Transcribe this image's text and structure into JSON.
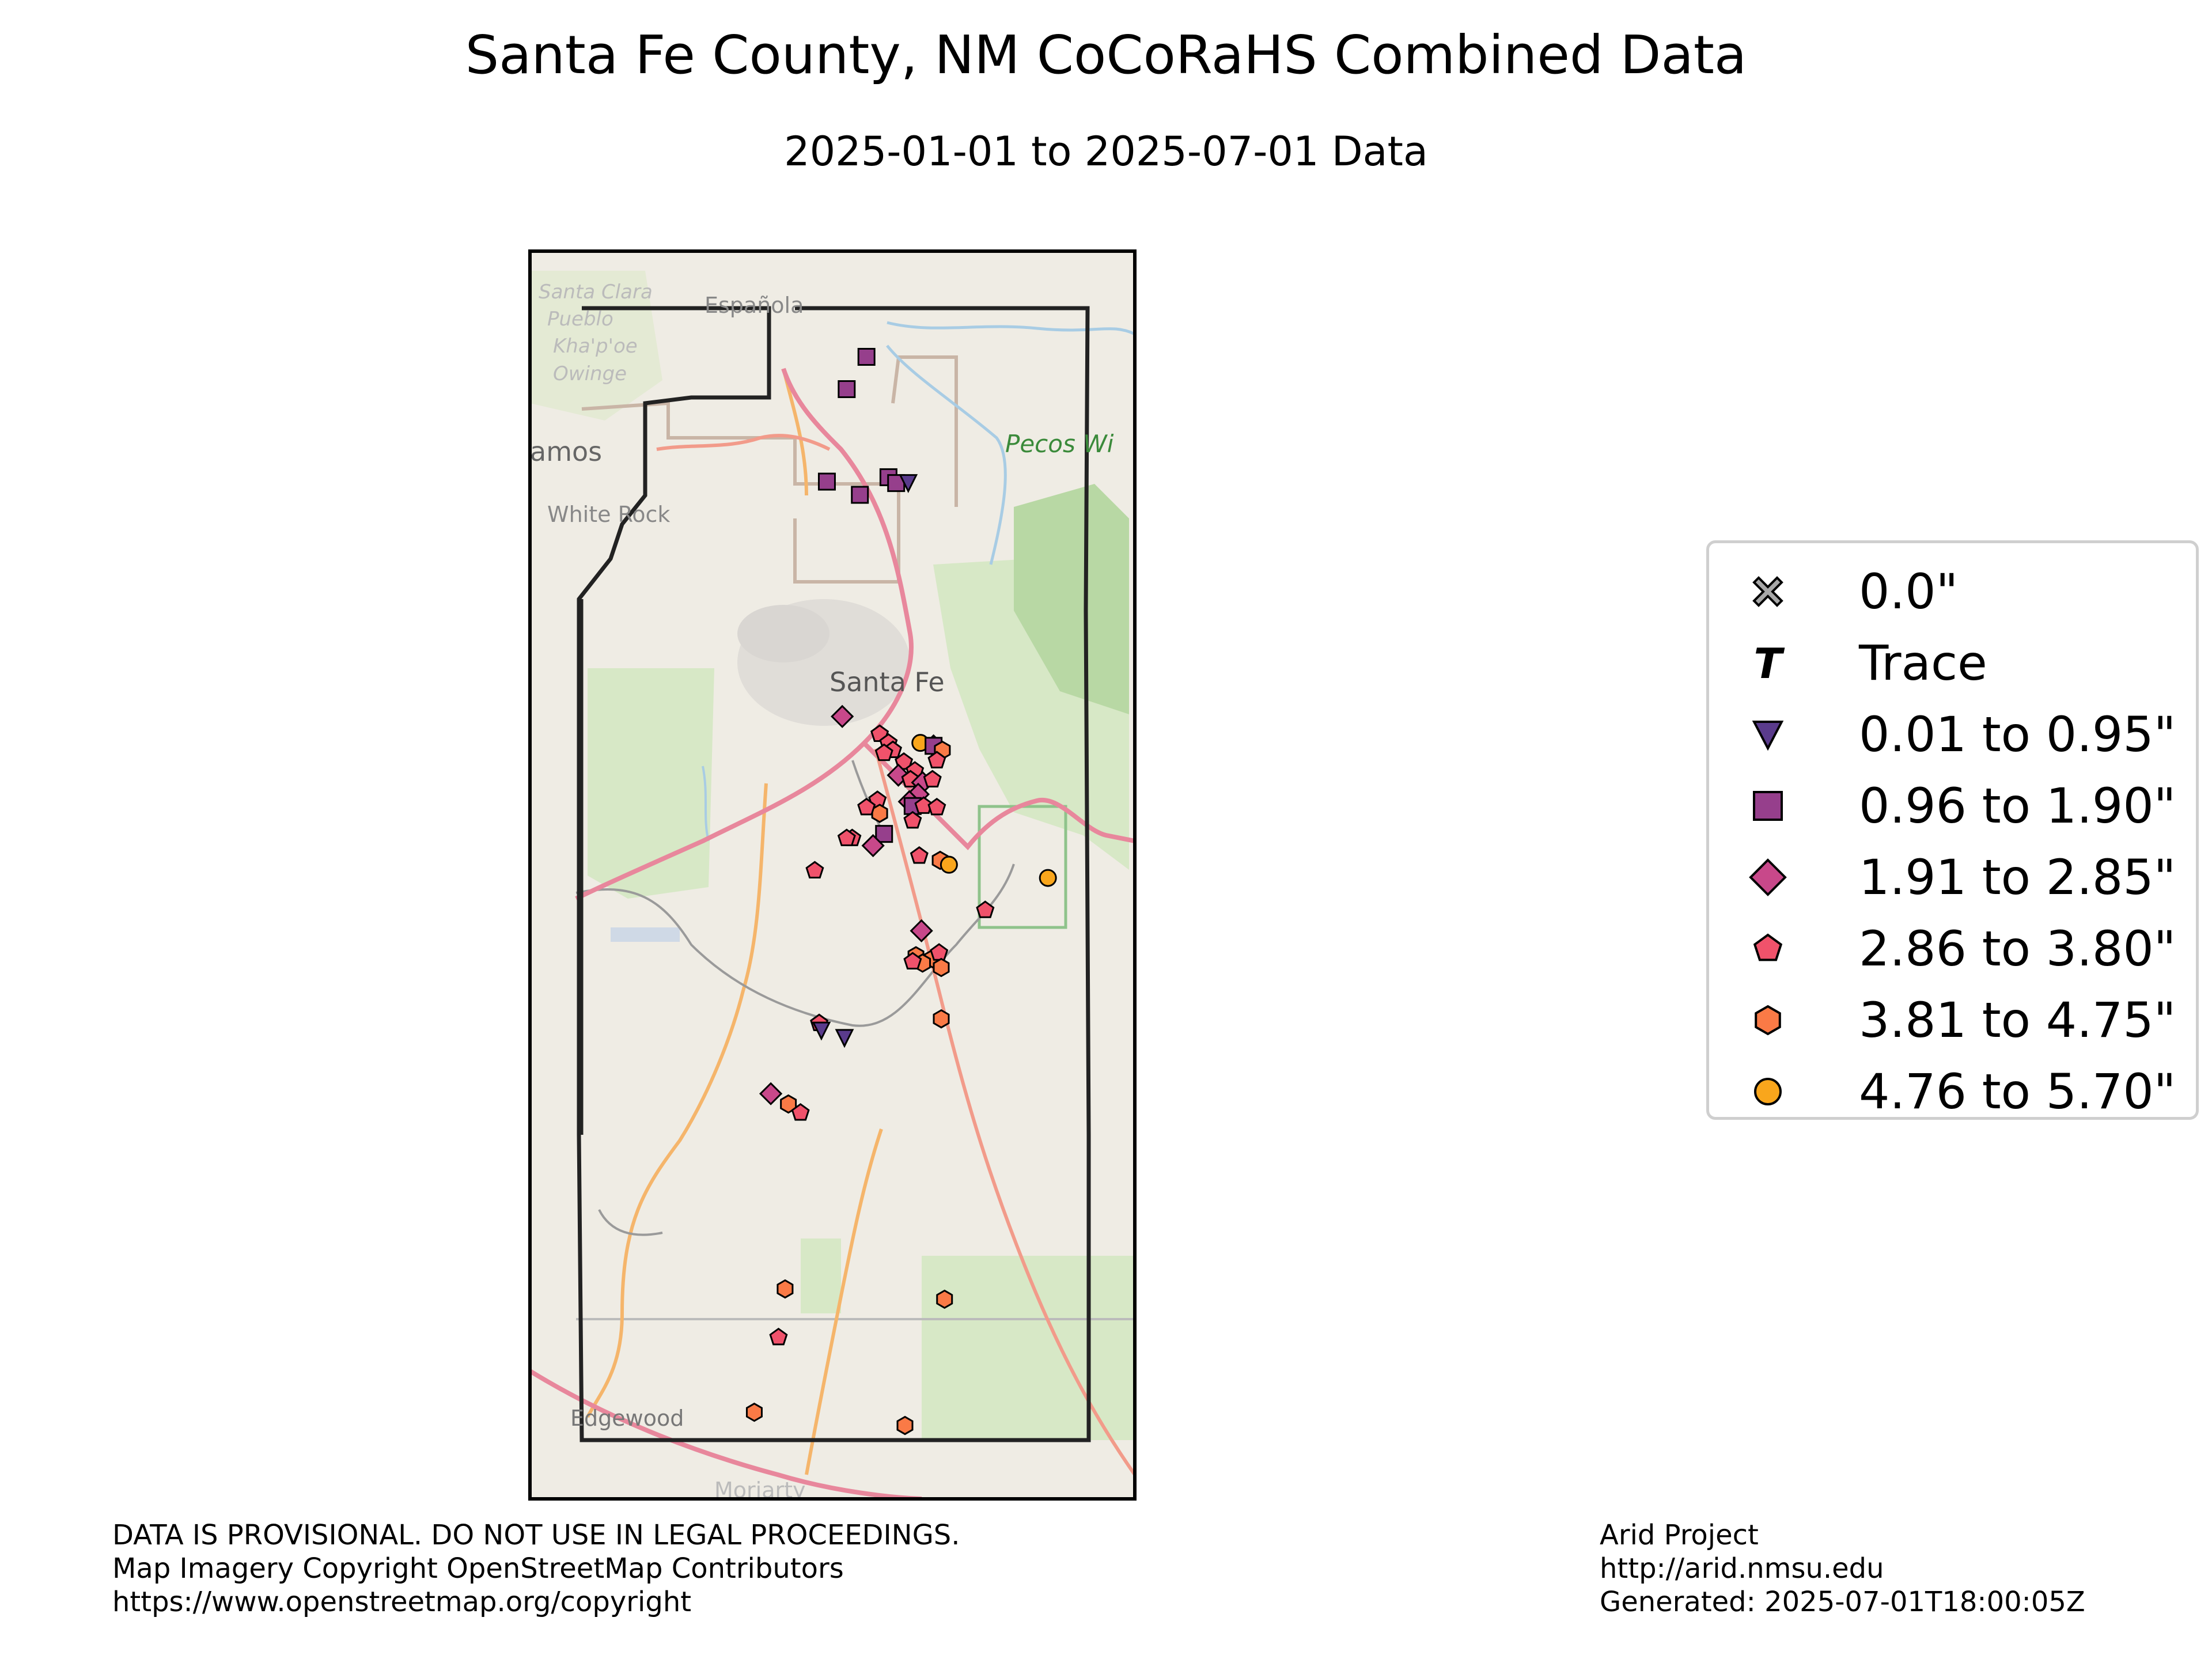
{
  "title": "Santa Fe County, NM CoCoRaHS Combined Data",
  "subtitle": "2025-01-01 to 2025-07-01 Data",
  "map": {
    "place_labels": [
      "Santa Clara",
      "Pueblo",
      "Kha'p'oe",
      "Owinge",
      "Española",
      "amos",
      "White Rock",
      "Pecos Wi",
      "Santa Fe",
      "Edgewood",
      "Moriarty"
    ],
    "colors": {
      "land": "#efece4",
      "forest": "#d7e8c6",
      "forest_dark": "#b8d8a4",
      "county_border": "#222222",
      "highway": "#e8879c",
      "secondary_road": "#f5b56b",
      "admin_boundary": "#c9b5a6"
    }
  },
  "legend": {
    "items": [
      {
        "label": "0.0\"",
        "symbol": "x-icon",
        "color": "#a8a8a8"
      },
      {
        "label": "Trace",
        "symbol": "trace-t-icon",
        "color": "#000000"
      },
      {
        "label": "0.01 to 0.95\"",
        "symbol": "triangle-down-icon",
        "color": "#5a3b8c"
      },
      {
        "label": "0.96 to 1.90\"",
        "symbol": "square-icon",
        "color": "#963f8c"
      },
      {
        "label": "1.91 to 2.85\"",
        "symbol": "diamond-icon",
        "color": "#c8488a"
      },
      {
        "label": "2.86 to 3.80\"",
        "symbol": "pentagon-icon",
        "color": "#f0526b"
      },
      {
        "label": "3.81 to 4.75\"",
        "symbol": "hexagon-icon",
        "color": "#fa7a46"
      },
      {
        "label": "4.76 to 5.70\"",
        "symbol": "circle-icon",
        "color": "#f9a61c"
      }
    ]
  },
  "stations": [
    {
      "category": 3,
      "lon": -105.944,
      "lat": 35.978
    },
    {
      "category": 3,
      "lon": -105.962,
      "lat": 35.956
    },
    {
      "category": 3,
      "lon": -105.98,
      "lat": 35.893
    },
    {
      "category": 3,
      "lon": -105.95,
      "lat": 35.884
    },
    {
      "category": 3,
      "lon": -105.924,
      "lat": 35.896
    },
    {
      "category": 3,
      "lon": -105.917,
      "lat": 35.892
    },
    {
      "category": 2,
      "lon": -105.906,
      "lat": 35.892
    },
    {
      "category": 4,
      "lon": -105.966,
      "lat": 35.733
    },
    {
      "category": 4,
      "lon": -105.883,
      "lat": 35.713
    },
    {
      "category": 5,
      "lon": -105.932,
      "lat": 35.721
    },
    {
      "category": 5,
      "lon": -105.924,
      "lat": 35.715
    },
    {
      "category": 5,
      "lon": -105.92,
      "lat": 35.71
    },
    {
      "category": 5,
      "lon": -105.928,
      "lat": 35.708
    },
    {
      "category": 7,
      "lon": -105.895,
      "lat": 35.715
    },
    {
      "category": 3,
      "lon": -105.883,
      "lat": 35.713
    },
    {
      "category": 6,
      "lon": -105.875,
      "lat": 35.71
    },
    {
      "category": 5,
      "lon": -105.88,
      "lat": 35.703
    },
    {
      "category": 5,
      "lon": -105.91,
      "lat": 35.702
    },
    {
      "category": 5,
      "lon": -105.9,
      "lat": 35.696
    },
    {
      "category": 4,
      "lon": -105.915,
      "lat": 35.693
    },
    {
      "category": 5,
      "lon": -105.904,
      "lat": 35.69
    },
    {
      "category": 4,
      "lon": -105.893,
      "lat": 35.688
    },
    {
      "category": 5,
      "lon": -105.884,
      "lat": 35.69
    },
    {
      "category": 4,
      "lon": -105.897,
      "lat": 35.68
    },
    {
      "category": 4,
      "lon": -105.905,
      "lat": 35.675
    },
    {
      "category": 3,
      "lon": -105.902,
      "lat": 35.672
    },
    {
      "category": 5,
      "lon": -105.892,
      "lat": 35.672
    },
    {
      "category": 5,
      "lon": -105.88,
      "lat": 35.671
    },
    {
      "category": 5,
      "lon": -105.934,
      "lat": 35.676
    },
    {
      "category": 6,
      "lon": -105.932,
      "lat": 35.667
    },
    {
      "category": 5,
      "lon": -105.944,
      "lat": 35.671
    },
    {
      "category": 5,
      "lon": -105.902,
      "lat": 35.662
    },
    {
      "category": 3,
      "lon": -105.928,
      "lat": 35.653
    },
    {
      "category": 4,
      "lon": -105.938,
      "lat": 35.645
    },
    {
      "category": 5,
      "lon": -105.957,
      "lat": 35.65
    },
    {
      "category": 5,
      "lon": -105.962,
      "lat": 35.65
    },
    {
      "category": 5,
      "lon": -105.991,
      "lat": 35.628
    },
    {
      "category": 5,
      "lon": -105.896,
      "lat": 35.638
    },
    {
      "category": 6,
      "lon": -105.877,
      "lat": 35.635
    },
    {
      "category": 7,
      "lon": -105.869,
      "lat": 35.632
    },
    {
      "category": 7,
      "lon": -105.779,
      "lat": 35.623
    },
    {
      "category": 5,
      "lon": -105.836,
      "lat": 35.601
    },
    {
      "category": 4,
      "lon": -105.894,
      "lat": 35.587
    },
    {
      "category": 6,
      "lon": -105.899,
      "lat": 35.57
    },
    {
      "category": 6,
      "lon": -105.884,
      "lat": 35.568
    },
    {
      "category": 5,
      "lon": -105.878,
      "lat": 35.572
    },
    {
      "category": 6,
      "lon": -105.876,
      "lat": 35.562
    },
    {
      "category": 6,
      "lon": -105.893,
      "lat": 35.565
    },
    {
      "category": 5,
      "lon": -105.902,
      "lat": 35.566
    },
    {
      "category": 6,
      "lon": -105.876,
      "lat": 35.527
    },
    {
      "category": 5,
      "lon": -105.987,
      "lat": 35.524
    },
    {
      "category": 2,
      "lon": -105.985,
      "lat": 35.519
    },
    {
      "category": 2,
      "lon": -105.964,
      "lat": 35.514
    },
    {
      "category": 4,
      "lon": -106.031,
      "lat": 35.476
    },
    {
      "category": 6,
      "lon": -106.015,
      "lat": 35.469
    },
    {
      "category": 5,
      "lon": -106.004,
      "lat": 35.463
    },
    {
      "category": 6,
      "lon": -106.018,
      "lat": 35.343
    },
    {
      "category": 6,
      "lon": -105.873,
      "lat": 35.336
    },
    {
      "category": 5,
      "lon": -106.024,
      "lat": 35.31
    },
    {
      "category": 6,
      "lon": -106.046,
      "lat": 35.259
    },
    {
      "category": 6,
      "lon": -105.909,
      "lat": 35.25
    }
  ],
  "footer": {
    "left": [
      "DATA IS PROVISIONAL. DO NOT USE IN LEGAL PROCEEDINGS.",
      "Map Imagery Copyright OpenStreetMap Contributors",
      "https://www.openstreetmap.org/copyright"
    ],
    "right": [
      "Arid Project",
      "http://arid.nmsu.edu",
      "Generated: 2025-07-01T18:00:05Z"
    ]
  }
}
